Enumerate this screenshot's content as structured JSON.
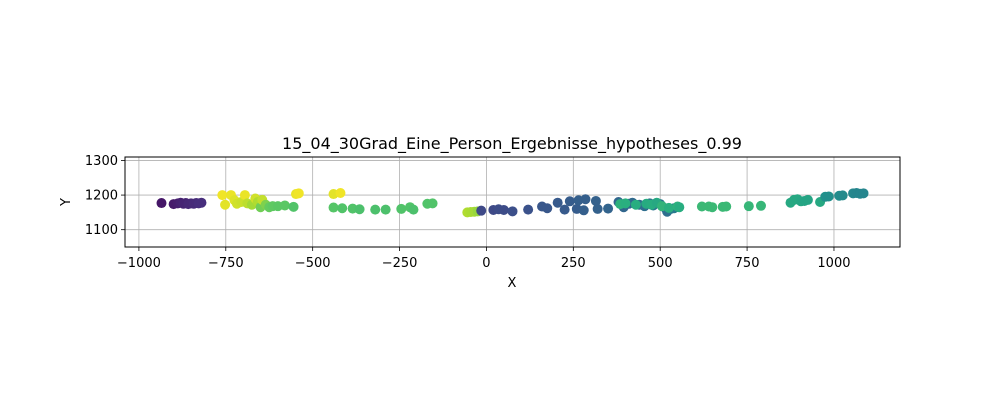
{
  "chart_data": {
    "type": "scatter",
    "title": "15_04_30Grad_Eine_Person_Ergebnisse_hypotheses_0.99",
    "xlabel": "X",
    "ylabel": "Y",
    "xlim": [
      -1040,
      1190
    ],
    "ylim": [
      1050,
      1310
    ],
    "xticks": [
      -1000,
      -750,
      -500,
      -250,
      0,
      250,
      500,
      750,
      1000
    ],
    "yticks": [
      1100,
      1200,
      1300
    ],
    "xtick_labels": [
      "−1000",
      "−750",
      "−500",
      "−250",
      "0",
      "250",
      "500",
      "750",
      "1000"
    ],
    "ytick_labels": [
      "1100",
      "1200",
      "1300"
    ],
    "grid": true,
    "colormap": "viridis",
    "colors": {
      "viridis": [
        "#440154",
        "#472d7b",
        "#3b528b",
        "#2c728e",
        "#21918c",
        "#28ae80",
        "#5ec962",
        "#addc30",
        "#fde725"
      ]
    },
    "points": [
      {
        "x": -935,
        "y": 1177,
        "c": 0.06
      },
      {
        "x": -900,
        "y": 1174,
        "c": 0.07
      },
      {
        "x": -888,
        "y": 1176,
        "c": 0.08
      },
      {
        "x": -880,
        "y": 1178,
        "c": 0.09
      },
      {
        "x": -872,
        "y": 1175,
        "c": 0.1
      },
      {
        "x": -865,
        "y": 1177,
        "c": 0.1
      },
      {
        "x": -858,
        "y": 1174,
        "c": 0.11
      },
      {
        "x": -850,
        "y": 1176,
        "c": 0.11
      },
      {
        "x": -842,
        "y": 1175,
        "c": 0.12
      },
      {
        "x": -835,
        "y": 1177,
        "c": 0.12
      },
      {
        "x": -828,
        "y": 1176,
        "c": 0.13
      },
      {
        "x": -820,
        "y": 1178,
        "c": 0.13
      },
      {
        "x": -760,
        "y": 1200,
        "c": 0.98
      },
      {
        "x": -752,
        "y": 1172,
        "c": 0.96
      },
      {
        "x": -735,
        "y": 1200,
        "c": 0.97
      },
      {
        "x": -725,
        "y": 1185,
        "c": 0.95
      },
      {
        "x": -718,
        "y": 1175,
        "c": 0.93
      },
      {
        "x": -705,
        "y": 1180,
        "c": 0.92
      },
      {
        "x": -695,
        "y": 1200,
        "c": 0.97
      },
      {
        "x": -688,
        "y": 1176,
        "c": 0.9
      },
      {
        "x": -675,
        "y": 1172,
        "c": 0.86
      },
      {
        "x": -665,
        "y": 1190,
        "c": 0.93
      },
      {
        "x": -658,
        "y": 1180,
        "c": 0.88
      },
      {
        "x": -650,
        "y": 1165,
        "c": 0.78
      },
      {
        "x": -645,
        "y": 1186,
        "c": 0.91
      },
      {
        "x": -635,
        "y": 1172,
        "c": 0.8
      },
      {
        "x": -625,
        "y": 1165,
        "c": 0.76
      },
      {
        "x": -615,
        "y": 1168,
        "c": 0.75
      },
      {
        "x": -600,
        "y": 1168,
        "c": 0.74
      },
      {
        "x": -580,
        "y": 1170,
        "c": 0.74
      },
      {
        "x": -555,
        "y": 1166,
        "c": 0.72
      },
      {
        "x": -548,
        "y": 1203,
        "c": 0.97
      },
      {
        "x": -540,
        "y": 1205,
        "c": 0.98
      },
      {
        "x": -440,
        "y": 1203,
        "c": 0.96
      },
      {
        "x": -420,
        "y": 1206,
        "c": 0.98
      },
      {
        "x": -440,
        "y": 1164,
        "c": 0.73
      },
      {
        "x": -415,
        "y": 1162,
        "c": 0.72
      },
      {
        "x": -385,
        "y": 1161,
        "c": 0.72
      },
      {
        "x": -365,
        "y": 1159,
        "c": 0.71
      },
      {
        "x": -320,
        "y": 1158,
        "c": 0.71
      },
      {
        "x": -290,
        "y": 1158,
        "c": 0.71
      },
      {
        "x": -245,
        "y": 1160,
        "c": 0.72
      },
      {
        "x": -220,
        "y": 1165,
        "c": 0.72
      },
      {
        "x": -210,
        "y": 1158,
        "c": 0.71
      },
      {
        "x": -170,
        "y": 1175,
        "c": 0.72
      },
      {
        "x": -155,
        "y": 1176,
        "c": 0.72
      },
      {
        "x": -55,
        "y": 1150,
        "c": 0.88
      },
      {
        "x": -45,
        "y": 1151,
        "c": 0.87
      },
      {
        "x": -35,
        "y": 1152,
        "c": 0.86
      },
      {
        "x": -25,
        "y": 1153,
        "c": 0.84
      },
      {
        "x": -15,
        "y": 1155,
        "c": 0.22
      },
      {
        "x": 20,
        "y": 1157,
        "c": 0.22
      },
      {
        "x": 35,
        "y": 1159,
        "c": 0.23
      },
      {
        "x": 50,
        "y": 1157,
        "c": 0.23
      },
      {
        "x": 75,
        "y": 1153,
        "c": 0.24
      },
      {
        "x": 120,
        "y": 1158,
        "c": 0.25
      },
      {
        "x": 160,
        "y": 1167,
        "c": 0.27
      },
      {
        "x": 175,
        "y": 1162,
        "c": 0.27
      },
      {
        "x": 205,
        "y": 1178,
        "c": 0.28
      },
      {
        "x": 225,
        "y": 1158,
        "c": 0.28
      },
      {
        "x": 240,
        "y": 1182,
        "c": 0.29
      },
      {
        "x": 260,
        "y": 1160,
        "c": 0.29
      },
      {
        "x": 265,
        "y": 1185,
        "c": 0.3
      },
      {
        "x": 280,
        "y": 1156,
        "c": 0.3
      },
      {
        "x": 285,
        "y": 1188,
        "c": 0.3
      },
      {
        "x": 315,
        "y": 1183,
        "c": 0.31
      },
      {
        "x": 320,
        "y": 1160,
        "c": 0.31
      },
      {
        "x": 350,
        "y": 1161,
        "c": 0.32
      },
      {
        "x": 380,
        "y": 1180,
        "c": 0.33
      },
      {
        "x": 395,
        "y": 1165,
        "c": 0.33
      },
      {
        "x": 410,
        "y": 1175,
        "c": 0.34
      },
      {
        "x": 420,
        "y": 1178,
        "c": 0.34
      },
      {
        "x": 440,
        "y": 1172,
        "c": 0.35
      },
      {
        "x": 455,
        "y": 1168,
        "c": 0.36
      },
      {
        "x": 470,
        "y": 1176,
        "c": 0.37
      },
      {
        "x": 480,
        "y": 1170,
        "c": 0.38
      },
      {
        "x": 500,
        "y": 1174,
        "c": 0.38
      },
      {
        "x": 515,
        "y": 1162,
        "c": 0.38
      },
      {
        "x": 520,
        "y": 1152,
        "c": 0.36
      },
      {
        "x": 530,
        "y": 1160,
        "c": 0.4
      },
      {
        "x": 540,
        "y": 1162,
        "c": 0.41
      },
      {
        "x": 385,
        "y": 1174,
        "c": 0.64
      },
      {
        "x": 400,
        "y": 1176,
        "c": 0.63
      },
      {
        "x": 430,
        "y": 1172,
        "c": 0.62
      },
      {
        "x": 460,
        "y": 1175,
        "c": 0.61
      },
      {
        "x": 475,
        "y": 1172,
        "c": 0.62
      },
      {
        "x": 490,
        "y": 1178,
        "c": 0.6
      },
      {
        "x": 505,
        "y": 1168,
        "c": 0.65
      },
      {
        "x": 525,
        "y": 1163,
        "c": 0.63
      },
      {
        "x": 550,
        "y": 1167,
        "c": 0.64
      },
      {
        "x": 555,
        "y": 1165,
        "c": 0.62
      },
      {
        "x": 620,
        "y": 1167,
        "c": 0.67
      },
      {
        "x": 640,
        "y": 1167,
        "c": 0.67
      },
      {
        "x": 650,
        "y": 1165,
        "c": 0.67
      },
      {
        "x": 680,
        "y": 1166,
        "c": 0.67
      },
      {
        "x": 690,
        "y": 1167,
        "c": 0.67
      },
      {
        "x": 755,
        "y": 1168,
        "c": 0.66
      },
      {
        "x": 790,
        "y": 1169,
        "c": 0.66
      },
      {
        "x": 875,
        "y": 1178,
        "c": 0.6
      },
      {
        "x": 885,
        "y": 1186,
        "c": 0.6
      },
      {
        "x": 895,
        "y": 1188,
        "c": 0.6
      },
      {
        "x": 905,
        "y": 1182,
        "c": 0.59
      },
      {
        "x": 915,
        "y": 1183,
        "c": 0.58
      },
      {
        "x": 925,
        "y": 1186,
        "c": 0.58
      },
      {
        "x": 960,
        "y": 1180,
        "c": 0.6
      },
      {
        "x": 975,
        "y": 1195,
        "c": 0.5
      },
      {
        "x": 985,
        "y": 1196,
        "c": 0.49
      },
      {
        "x": 1015,
        "y": 1198,
        "c": 0.48
      },
      {
        "x": 1025,
        "y": 1199,
        "c": 0.47
      },
      {
        "x": 1055,
        "y": 1205,
        "c": 0.46
      },
      {
        "x": 1065,
        "y": 1206,
        "c": 0.45
      },
      {
        "x": 1075,
        "y": 1204,
        "c": 0.45
      },
      {
        "x": 1085,
        "y": 1205,
        "c": 0.45
      }
    ]
  }
}
